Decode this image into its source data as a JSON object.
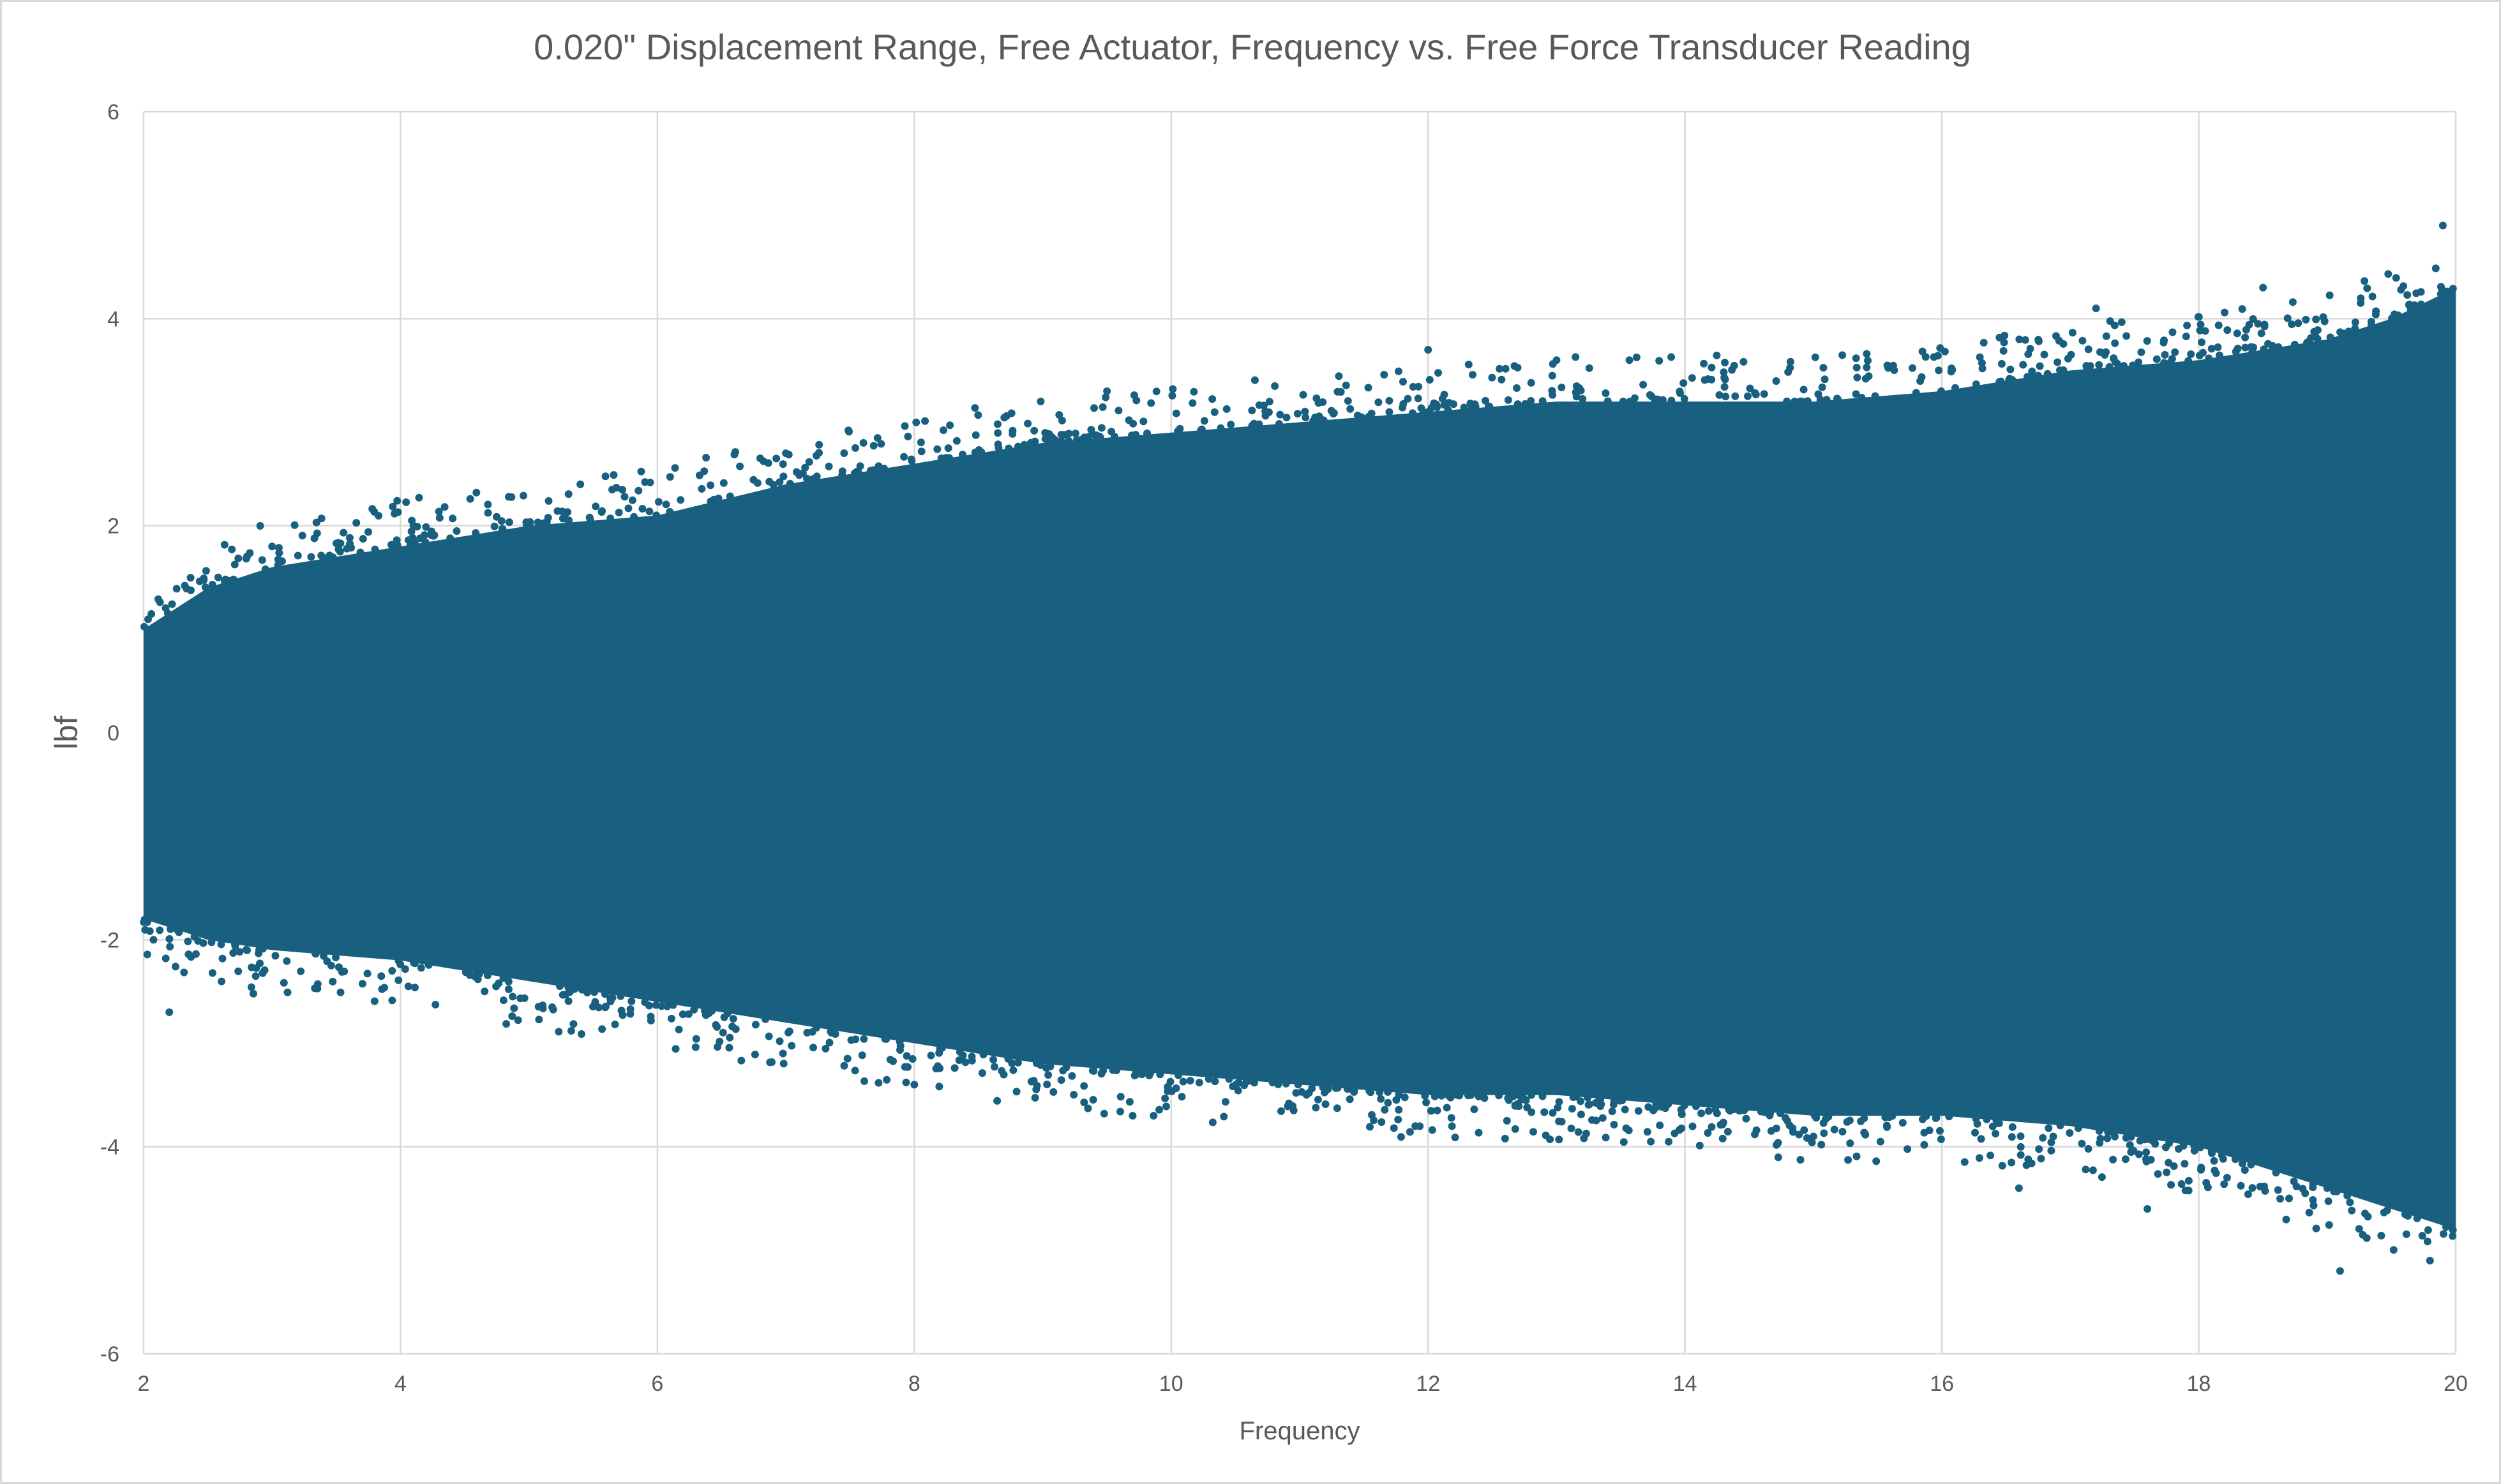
{
  "chart_data": {
    "type": "scatter",
    "title": "0.020\" Displacement Range, Free Actuator, Frequency vs. Free Force Transducer Reading",
    "xlabel": "Frequency",
    "ylabel": "lbf",
    "xlim": [
      2,
      20
    ],
    "ylim": [
      -6,
      6
    ],
    "x_ticks": [
      2,
      4,
      6,
      8,
      10,
      12,
      14,
      16,
      18,
      20
    ],
    "y_ticks": [
      6,
      4,
      2,
      0,
      -2,
      -4,
      -6
    ],
    "x_tick_labels": [
      "2",
      "4",
      "6",
      "8",
      "10",
      "12",
      "14",
      "16",
      "18",
      "20"
    ],
    "y_tick_labels": [
      "6",
      "4",
      "2",
      "0",
      "-2",
      "-4",
      "-6"
    ],
    "grid": true,
    "legend": "none",
    "marker_color": "#185f80",
    "series": [
      {
        "envelope": {
          "x": [
            2.0,
            2.5,
            3.0,
            4.0,
            5.0,
            6.0,
            7.0,
            8.0,
            9.0,
            10.0,
            11.0,
            12.0,
            13.0,
            14.0,
            15.0,
            16.0,
            17.0,
            18.0,
            19.0,
            19.5,
            20.0
          ],
          "upper": [
            1.0,
            1.4,
            1.6,
            1.8,
            2.0,
            2.1,
            2.4,
            2.6,
            2.8,
            2.9,
            3.0,
            3.1,
            3.2,
            3.2,
            3.2,
            3.3,
            3.5,
            3.6,
            3.8,
            4.0,
            4.3
          ],
          "lower": [
            -1.8,
            -2.0,
            -2.1,
            -2.2,
            -2.4,
            -2.6,
            -2.8,
            -3.0,
            -3.2,
            -3.3,
            -3.4,
            -3.5,
            -3.5,
            -3.6,
            -3.7,
            -3.7,
            -3.8,
            -4.0,
            -4.4,
            -4.6,
            -4.8
          ]
        },
        "outliers": [
          {
            "x": 2.2,
            "y": -2.7
          },
          {
            "x": 3.0,
            "y": 1.8
          },
          {
            "x": 4.1,
            "y": 2.0
          },
          {
            "x": 5.4,
            "y": 2.4
          },
          {
            "x": 7.0,
            "y": 2.7
          },
          {
            "x": 8.0,
            "y": -3.4
          },
          {
            "x": 9.5,
            "y": 3.3
          },
          {
            "x": 9.7,
            "y": -3.7
          },
          {
            "x": 12.0,
            "y": 3.7
          },
          {
            "x": 11.9,
            "y": -3.8
          },
          {
            "x": 13.0,
            "y": 3.6
          },
          {
            "x": 15.0,
            "y": -3.9
          },
          {
            "x": 16.6,
            "y": -4.4
          },
          {
            "x": 17.2,
            "y": 4.1
          },
          {
            "x": 17.6,
            "y": -4.6
          },
          {
            "x": 18.5,
            "y": 4.3
          },
          {
            "x": 19.1,
            "y": -5.2
          },
          {
            "x": 19.9,
            "y": 4.9
          },
          {
            "x": 19.8,
            "y": -5.1
          }
        ]
      }
    ]
  }
}
